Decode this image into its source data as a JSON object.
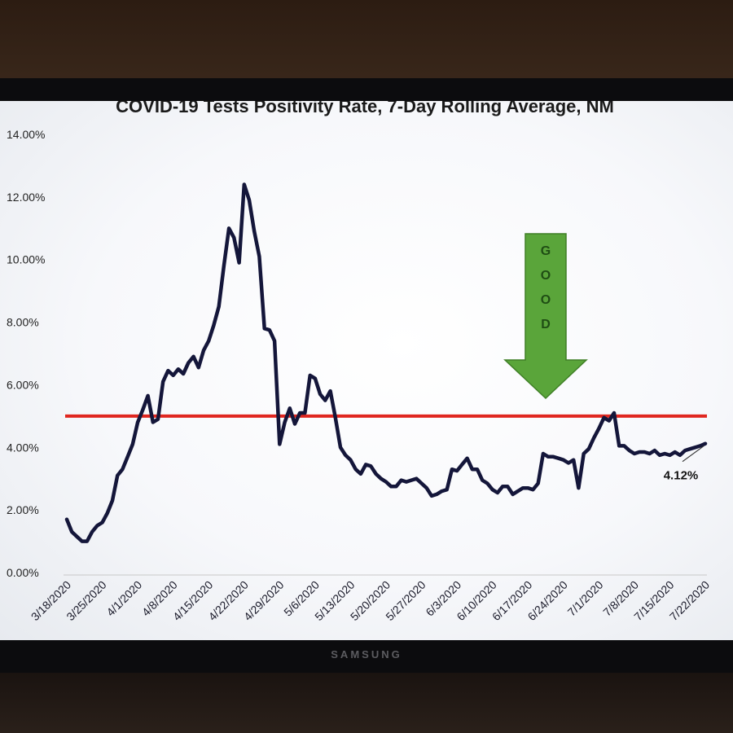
{
  "brand": "SAMSUNG",
  "colors": {
    "series": "#14163a",
    "threshold": "#e0261f",
    "arrow": "#5aa53a",
    "arrow_text": "#1f4d14"
  },
  "annotation": {
    "arrow_letters": [
      "G",
      "O",
      "O",
      "D"
    ],
    "callout": "4.12%"
  },
  "chart_data": {
    "type": "line",
    "title": "COVID-19 Tests Positivity Rate, 7-Day Rolling Average, NM",
    "xlabel": "",
    "ylabel": "",
    "ylim": [
      0,
      14
    ],
    "yticks": [
      "0.00%",
      "2.00%",
      "4.00%",
      "6.00%",
      "8.00%",
      "10.00%",
      "12.00%",
      "14.00%"
    ],
    "y_tick_values": [
      0,
      2,
      4,
      6,
      8,
      10,
      12,
      14
    ],
    "xticks": [
      "3/18/2020",
      "3/25/2020",
      "4/1/2020",
      "4/8/2020",
      "4/15/2020",
      "4/22/2020",
      "4/29/2020",
      "5/6/2020",
      "5/13/2020",
      "5/20/2020",
      "5/27/2020",
      "6/3/2020",
      "6/10/2020",
      "6/17/2020",
      "6/24/2020",
      "7/1/2020",
      "7/8/2020",
      "7/15/2020",
      "7/22/2020"
    ],
    "threshold": 5.0,
    "grid": false,
    "legend": "none",
    "series": [
      {
        "x_start": "3/18/2020",
        "values": [
          1.7,
          1.3,
          1.15,
          1.0,
          1.0,
          1.3,
          1.5,
          1.6,
          1.9,
          2.3,
          3.1,
          3.3,
          3.7,
          4.1,
          4.8,
          5.2,
          5.65,
          4.8,
          4.9,
          6.1,
          6.45,
          6.3,
          6.5,
          6.35,
          6.7,
          6.9,
          6.55,
          7.1,
          7.4,
          7.9,
          8.5,
          9.8,
          11.0,
          10.7,
          9.9,
          12.4,
          11.9,
          10.9,
          10.1,
          7.8,
          7.75,
          7.4,
          4.1,
          4.8,
          5.25,
          4.75,
          5.1,
          5.1,
          6.3,
          6.2,
          5.7,
          5.5,
          5.8,
          4.95,
          4.0,
          3.75,
          3.6,
          3.3,
          3.15,
          3.45,
          3.4,
          3.15,
          3.0,
          2.9,
          2.75,
          2.75,
          2.95,
          2.9,
          2.95,
          3.0,
          2.85,
          2.7,
          2.45,
          2.5,
          2.6,
          2.65,
          3.3,
          3.25,
          3.45,
          3.65,
          3.3,
          3.3,
          2.95,
          2.85,
          2.65,
          2.55,
          2.75,
          2.75,
          2.5,
          2.6,
          2.7,
          2.7,
          2.65,
          2.85,
          3.8,
          3.7,
          3.7,
          3.65,
          3.6,
          3.5,
          3.6,
          2.7,
          3.8,
          3.95,
          4.3,
          4.6,
          4.95,
          4.85,
          5.1,
          4.05,
          4.05,
          3.9,
          3.8,
          3.85,
          3.85,
          3.8,
          3.9,
          3.75,
          3.8,
          3.75,
          3.85,
          3.75,
          3.9,
          3.95,
          4.0,
          4.05,
          4.12
        ]
      }
    ]
  }
}
